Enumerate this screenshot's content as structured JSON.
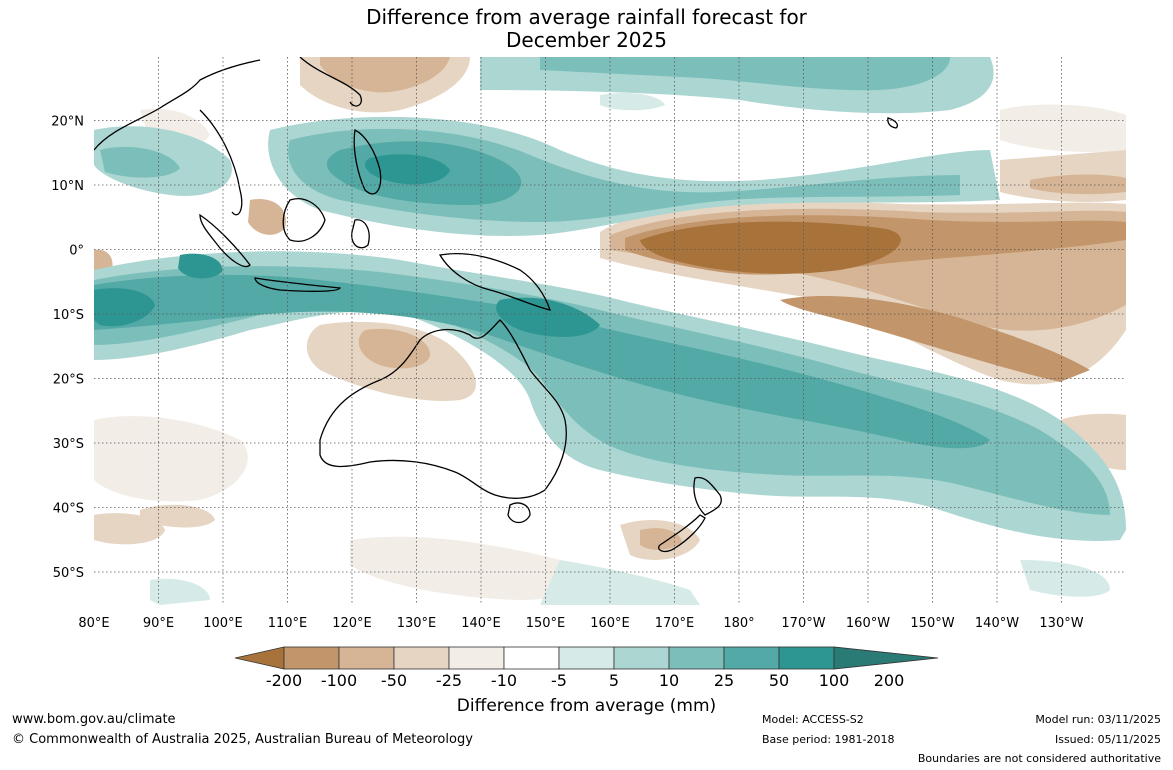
{
  "title_line1": "Difference from average rainfall forecast for",
  "title_line2": "December 2025",
  "map": {
    "lon_labels": [
      "80°E",
      "90°E",
      "100°E",
      "110°E",
      "120°E",
      "130°E",
      "140°E",
      "150°E",
      "160°E",
      "170°E",
      "180°",
      "170°W",
      "160°W",
      "150°W",
      "140°W",
      "130°W"
    ],
    "lat_labels": [
      "20°N",
      "10°N",
      "0°",
      "10°S",
      "20°S",
      "30°S",
      "40°S",
      "50°S"
    ]
  },
  "colorbar": {
    "title": "Difference from average (mm)",
    "tick_labels": [
      "-200",
      "-100",
      "-50",
      "-25",
      "-10",
      "-5",
      "5",
      "10",
      "25",
      "50",
      "100",
      "200"
    ],
    "colors": [
      "#a8733a",
      "#c2956a",
      "#d5b595",
      "#e6d5c3",
      "#f2ede6",
      "#ffffff",
      "#d6eae7",
      "#acd6d2",
      "#7cbfba",
      "#52a9a6",
      "#2e9692",
      "#2a7a76"
    ]
  },
  "footer": {
    "website": "www.bom.gov.au/climate",
    "copyright": "© Commonwealth of Australia 2025, Australian Bureau of Meteorology",
    "model": "Model: ACCESS-S2",
    "base_period": "Base period: 1981-2018",
    "model_run": "Model run: 03/11/2025",
    "issued": "Issued: 05/11/2025",
    "disclaimer": "Boundaries are not considered authoritative"
  }
}
